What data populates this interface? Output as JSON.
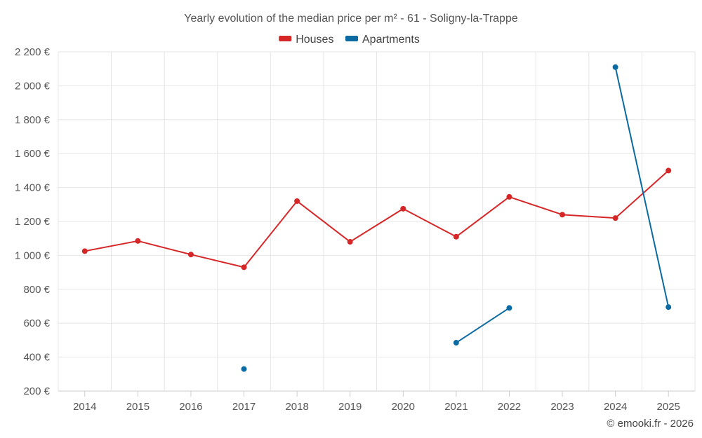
{
  "chart_data": {
    "type": "line",
    "title": "Yearly evolution of the median price per m² - 61 - Soligny-la-Trappe",
    "categories": [
      "2014",
      "2015",
      "2016",
      "2017",
      "2018",
      "2019",
      "2020",
      "2021",
      "2022",
      "2023",
      "2024",
      "2025"
    ],
    "ylim": [
      200,
      2200
    ],
    "yticks": [
      200,
      400,
      600,
      800,
      1000,
      1200,
      1400,
      1600,
      1800,
      2000,
      2200
    ],
    "ytick_labels": [
      "200 €",
      "400 €",
      "600 €",
      "800 €",
      "1 000 €",
      "1 200 €",
      "1 400 €",
      "1 600 €",
      "1 800 €",
      "2 000 €",
      "2 200 €"
    ],
    "series": [
      {
        "name": "Houses",
        "color": "#d62728",
        "values": [
          1025,
          1085,
          1005,
          930,
          1320,
          1080,
          1275,
          1110,
          1345,
          1240,
          1220,
          1500
        ]
      },
      {
        "name": "Apartments",
        "color": "#0a6aa1",
        "values": [
          null,
          null,
          null,
          330,
          null,
          null,
          null,
          485,
          690,
          null,
          2110,
          695
        ]
      }
    ],
    "legend": "top-center",
    "grid": true
  },
  "credit": "© emooki.fr - 2026"
}
